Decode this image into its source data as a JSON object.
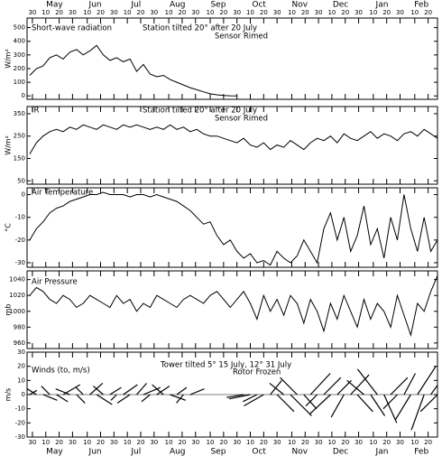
{
  "x_axis": {
    "xlim": [
      "04-26",
      "02-27"
    ],
    "months": [
      {
        "value": "05-01",
        "label": "May"
      },
      {
        "value": "06-01",
        "label": "Jun"
      },
      {
        "value": "07-01",
        "label": "Jul"
      },
      {
        "value": "08-01",
        "label": "Aug"
      },
      {
        "value": "09-01",
        "label": "Sep"
      },
      {
        "value": "10-01",
        "label": "Oct"
      },
      {
        "value": "11-01",
        "label": "Nov"
      },
      {
        "value": "12-01",
        "label": "Dec"
      },
      {
        "value": "01-01",
        "label": "Jan"
      },
      {
        "value": "02-01",
        "label": "Feb"
      }
    ],
    "xticks": [
      {
        "value": "04-30",
        "label": "30"
      },
      {
        "value": "05-10",
        "label": "10"
      },
      {
        "value": "05-20",
        "label": "20"
      },
      {
        "value": "05-30",
        "label": "30"
      },
      {
        "value": "06-10",
        "label": "10"
      },
      {
        "value": "06-20",
        "label": "20"
      },
      {
        "value": "06-30",
        "label": "30"
      },
      {
        "value": "07-10",
        "label": "10"
      },
      {
        "value": "07-20",
        "label": "20"
      },
      {
        "value": "07-30",
        "label": "30"
      },
      {
        "value": "08-10",
        "label": "10"
      },
      {
        "value": "08-20",
        "label": "20"
      },
      {
        "value": "08-30",
        "label": "30"
      },
      {
        "value": "09-10",
        "label": "10"
      },
      {
        "value": "09-20",
        "label": "20"
      },
      {
        "value": "09-30",
        "label": "30"
      },
      {
        "value": "10-10",
        "label": "10"
      },
      {
        "value": "10-20",
        "label": "20"
      },
      {
        "value": "10-30",
        "label": "30"
      },
      {
        "value": "11-10",
        "label": "10"
      },
      {
        "value": "11-20",
        "label": "20"
      },
      {
        "value": "11-30",
        "label": "30"
      },
      {
        "value": "12-10",
        "label": "10"
      },
      {
        "value": "12-20",
        "label": "20"
      },
      {
        "value": "12-30",
        "label": "30"
      },
      {
        "value": "01-10",
        "label": "10"
      },
      {
        "value": "01-20",
        "label": "20"
      },
      {
        "value": "01-30",
        "label": "30"
      },
      {
        "value": "02-10",
        "label": "10"
      },
      {
        "value": "02-20",
        "label": "20"
      }
    ]
  },
  "chart_data": [
    {
      "type": "line",
      "ylabel": "W/m²",
      "annotations": [
        "Short-wave radiation",
        "Station tilted 20° after 20 July",
        "Sensor Rimed"
      ],
      "ylim": [
        -25,
        570
      ],
      "yticks": [
        0,
        100,
        200,
        300,
        400,
        500
      ],
      "color": "#000000",
      "x": [
        "04-28",
        "05-03",
        "05-08",
        "05-13",
        "05-18",
        "05-23",
        "05-28",
        "06-02",
        "06-07",
        "06-12",
        "06-17",
        "06-22",
        "06-27",
        "07-02",
        "07-07",
        "07-12",
        "07-17",
        "07-22",
        "07-27",
        "08-01",
        "08-06",
        "08-11",
        "08-16",
        "08-21",
        "08-26",
        "08-31",
        "09-05",
        "09-10",
        "09-15",
        "09-20",
        "09-25",
        "09-30",
        "10-05",
        "10-10",
        "10-15",
        "10-20",
        "10-25",
        "10-30",
        "11-04",
        "11-09",
        "11-14",
        "11-19",
        "11-24",
        "11-29",
        "12-04",
        "12-09",
        "12-14",
        "12-19",
        "12-24",
        "12-29",
        "01-03",
        "01-08",
        "01-13",
        "01-18",
        "01-23",
        "01-28",
        "02-02",
        "02-07",
        "02-12",
        "02-17",
        "02-22",
        "02-27"
      ],
      "values": [
        150,
        200,
        220,
        280,
        300,
        270,
        320,
        340,
        300,
        330,
        370,
        300,
        260,
        280,
        250,
        270,
        180,
        230,
        160,
        140,
        150,
        120,
        100,
        80,
        60,
        45,
        30,
        15,
        8,
        3,
        1,
        0,
        null,
        null,
        null,
        null,
        null,
        null,
        null,
        null,
        null,
        null,
        null,
        null,
        null,
        null,
        null,
        null,
        null,
        null,
        null,
        null,
        null,
        null,
        null,
        null,
        null,
        null,
        null,
        null,
        null,
        null
      ]
    },
    {
      "type": "line",
      "ylabel": "W/m²",
      "annotations": [
        "IR",
        "Station tilted 20° after 20 July",
        "Sensor Rimed"
      ],
      "ylim": [
        35,
        382
      ],
      "yticks": [
        50,
        150,
        250,
        350
      ],
      "color": "#000000",
      "x": [
        "04-28",
        "05-03",
        "05-08",
        "05-13",
        "05-18",
        "05-23",
        "05-28",
        "06-02",
        "06-07",
        "06-12",
        "06-17",
        "06-22",
        "06-27",
        "07-02",
        "07-07",
        "07-12",
        "07-17",
        "07-22",
        "07-27",
        "08-01",
        "08-06",
        "08-11",
        "08-16",
        "08-21",
        "08-26",
        "08-31",
        "09-05",
        "09-10",
        "09-15",
        "09-20",
        "09-25",
        "09-30",
        "10-05",
        "10-10",
        "10-15",
        "10-20",
        "10-25",
        "10-30",
        "11-04",
        "11-09",
        "11-14",
        "11-19",
        "11-24",
        "11-29",
        "12-04",
        "12-09",
        "12-14",
        "12-19",
        "12-24",
        "12-29",
        "01-03",
        "01-08",
        "01-13",
        "01-18",
        "01-23",
        "01-28",
        "02-02",
        "02-07",
        "02-12",
        "02-17",
        "02-22",
        "02-27"
      ],
      "values": [
        170,
        220,
        250,
        270,
        280,
        270,
        290,
        280,
        300,
        290,
        280,
        300,
        290,
        280,
        300,
        290,
        300,
        290,
        280,
        290,
        280,
        300,
        280,
        290,
        270,
        280,
        260,
        250,
        250,
        240,
        230,
        220,
        240,
        210,
        200,
        220,
        190,
        210,
        200,
        230,
        210,
        190,
        220,
        240,
        230,
        250,
        220,
        260,
        240,
        230,
        250,
        270,
        240,
        260,
        250,
        230,
        260,
        270,
        250,
        280,
        260,
        240
      ]
    },
    {
      "type": "line",
      "ylabel": "°C",
      "annotations": [
        "Air Temperature"
      ],
      "ylim": [
        -32,
        3
      ],
      "yticks": [
        0,
        -10,
        -20,
        -30
      ],
      "color": "#000000",
      "x": [
        "04-28",
        "05-03",
        "05-08",
        "05-13",
        "05-18",
        "05-23",
        "05-28",
        "06-02",
        "06-07",
        "06-12",
        "06-17",
        "06-22",
        "06-27",
        "07-02",
        "07-07",
        "07-12",
        "07-17",
        "07-22",
        "07-27",
        "08-01",
        "08-06",
        "08-11",
        "08-16",
        "08-21",
        "08-26",
        "08-31",
        "09-05",
        "09-10",
        "09-15",
        "09-20",
        "09-25",
        "09-30",
        "10-05",
        "10-10",
        "10-15",
        "10-20",
        "10-25",
        "10-30",
        "11-04",
        "11-09",
        "11-14",
        "11-19",
        "11-24",
        "11-29",
        "12-04",
        "12-09",
        "12-14",
        "12-19",
        "12-24",
        "12-29",
        "01-03",
        "01-08",
        "01-13",
        "01-18",
        "01-23",
        "01-28",
        "02-02",
        "02-07",
        "02-12",
        "02-17",
        "02-22",
        "02-27"
      ],
      "values": [
        -20,
        -15,
        -12,
        -8,
        -6,
        -5,
        -3,
        -2,
        -1,
        0,
        0,
        1,
        0,
        0,
        0,
        -1,
        0,
        0,
        -1,
        0,
        -1,
        -2,
        -3,
        -5,
        -7,
        -10,
        -13,
        -12,
        -18,
        -22,
        -20,
        -25,
        -28,
        -26,
        -30,
        -29,
        -31,
        -25,
        -28,
        -30,
        -27,
        -20,
        -25,
        -30,
        -15,
        -8,
        -20,
        -10,
        -25,
        -18,
        -5,
        -22,
        -15,
        -28,
        -10,
        -20,
        0,
        -15,
        -25,
        -10,
        -25,
        -20
      ]
    },
    {
      "type": "line",
      "ylabel": "mb",
      "annotations": [
        "Air Pressure"
      ],
      "ylim": [
        953,
        1051
      ],
      "yticks": [
        960,
        980,
        1000,
        1020,
        1040
      ],
      "color": "#000000",
      "x": [
        "04-28",
        "05-03",
        "05-08",
        "05-13",
        "05-18",
        "05-23",
        "05-28",
        "06-02",
        "06-07",
        "06-12",
        "06-17",
        "06-22",
        "06-27",
        "07-02",
        "07-07",
        "07-12",
        "07-17",
        "07-22",
        "07-27",
        "08-01",
        "08-06",
        "08-11",
        "08-16",
        "08-21",
        "08-26",
        "08-31",
        "09-05",
        "09-10",
        "09-15",
        "09-20",
        "09-25",
        "09-30",
        "10-05",
        "10-10",
        "10-15",
        "10-20",
        "10-25",
        "10-30",
        "11-04",
        "11-09",
        "11-14",
        "11-19",
        "11-24",
        "11-29",
        "12-04",
        "12-09",
        "12-14",
        "12-19",
        "12-24",
        "12-29",
        "01-03",
        "01-08",
        "01-13",
        "01-18",
        "01-23",
        "01-28",
        "02-02",
        "02-07",
        "02-12",
        "02-17",
        "02-22",
        "02-27"
      ],
      "values": [
        1020,
        1030,
        1025,
        1015,
        1010,
        1020,
        1015,
        1005,
        1010,
        1020,
        1015,
        1010,
        1005,
        1020,
        1010,
        1015,
        1000,
        1010,
        1005,
        1020,
        1015,
        1010,
        1005,
        1015,
        1020,
        1015,
        1010,
        1020,
        1025,
        1015,
        1005,
        1015,
        1025,
        1010,
        990,
        1020,
        1000,
        1015,
        995,
        1020,
        1010,
        985,
        1015,
        1000,
        975,
        1010,
        990,
        1020,
        1000,
        980,
        1015,
        990,
        1010,
        1000,
        980,
        1020,
        995,
        970,
        1010,
        1000,
        1025,
        1045
      ]
    },
    {
      "type": "stick",
      "ylabel": "m/s",
      "annotations": [
        "Winds (to, m/s)",
        "Tower tilted 5° 15 July, 12° 31 July",
        "Rotor Frozen"
      ],
      "ylim": [
        -30,
        30
      ],
      "yticks": [
        -30,
        -20,
        -10,
        0,
        10,
        20,
        30
      ],
      "color": "#000000",
      "x": [
        "04-28",
        "05-03",
        "05-08",
        "05-13",
        "05-18",
        "05-23",
        "05-28",
        "06-02",
        "06-07",
        "06-12",
        "06-17",
        "06-22",
        "06-27",
        "07-02",
        "07-07",
        "07-12",
        "07-17",
        "07-22",
        "07-27",
        "08-01",
        "08-06",
        "08-11",
        "08-16",
        "08-21",
        "08-26",
        "08-31",
        "09-05",
        "09-10",
        "09-15",
        "09-20",
        "09-25",
        "09-30",
        "10-05",
        "10-10",
        "10-15",
        "10-20",
        "10-25",
        "10-30",
        "11-04",
        "11-09",
        "11-14",
        "11-19",
        "11-24",
        "11-29",
        "12-04",
        "12-09",
        "12-14",
        "12-19",
        "12-24",
        "12-29",
        "01-03",
        "01-08",
        "01-13",
        "01-18",
        "01-23",
        "01-28",
        "02-02",
        "02-07",
        "02-12",
        "02-17",
        "02-22",
        "02-27"
      ],
      "u": [
        5,
        -8,
        10,
        -6,
        8,
        12,
        -10,
        6,
        -5,
        9,
        11,
        -7,
        8,
        -4,
        10,
        -9,
        7,
        12,
        -6,
        9,
        -8,
        11,
        7,
        -5,
        10,
        null,
        null,
        null,
        null,
        null,
        null,
        null,
        -12,
        -15,
        -10,
        -14,
        8,
        12,
        -10,
        15,
        -12,
        9,
        14,
        -8,
        12,
        -15,
        10,
        -9,
        13,
        11,
        -12,
        10,
        -14,
        9,
        12,
        -10,
        8,
        -11,
        13,
        -9,
        10,
        -12
      ],
      "v": [
        3,
        5,
        -4,
        6,
        -5,
        7,
        4,
        -6,
        5,
        8,
        -7,
        6,
        5,
        -4,
        7,
        -6,
        8,
        5,
        -5,
        6,
        7,
        -4,
        5,
        -6,
        4,
        null,
        null,
        null,
        null,
        null,
        null,
        null,
        -2,
        -3,
        -5,
        -8,
        10,
        -12,
        8,
        -15,
        12,
        -10,
        15,
        -8,
        12,
        -14,
        10,
        -16,
        14,
        -12,
        10,
        -15,
        18,
        -20,
        12,
        -10,
        15,
        -18,
        20,
        -25,
        14,
        -12
      ]
    }
  ]
}
